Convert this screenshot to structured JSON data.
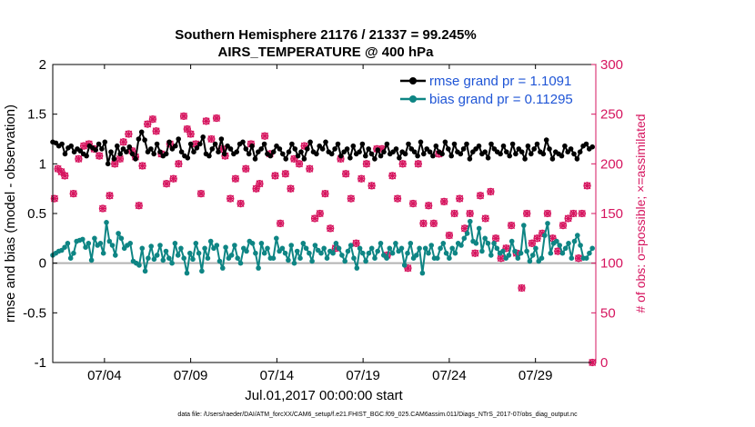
{
  "chart_data": {
    "type": "line",
    "title": "Southern Hemisphere 21176 / 21337 = 99.245%",
    "subtitle": "AIRS_TEMPERATURE @ 400 hPa",
    "xlabel": "Jul.01,2017 00:00:00 start",
    "ylabel": "rmse and bias (model - observation)",
    "ylabel_right": "# of obs: o=possible; ×=assimilated",
    "xlim": [
      1,
      32.5
    ],
    "ylim": [
      -1,
      2
    ],
    "ylim_right": [
      0,
      300
    ],
    "x_ticks": [
      4,
      9,
      14,
      19,
      24,
      29
    ],
    "x_tick_labels": [
      "07/04",
      "07/09",
      "07/14",
      "07/19",
      "07/24",
      "07/29"
    ],
    "y_ticks": [
      -1,
      -0.5,
      0,
      0.5,
      1,
      1.5,
      2
    ],
    "y_tick_labels": [
      "-1",
      "-0.5",
      "0",
      "0.5",
      "1",
      "1.5",
      "2"
    ],
    "y_right_ticks": [
      0,
      50,
      100,
      150,
      200,
      250,
      300
    ],
    "y_right_tick_labels": [
      "0",
      "50",
      "100",
      "150",
      "200",
      "250",
      "300"
    ],
    "legend_position": "top-right",
    "reference_line_y": 0,
    "series": [
      {
        "name": "rmse grand pr = 1.1091",
        "axis": "left",
        "color": "#000000",
        "values": [
          1.22,
          1.21,
          1.18,
          1.2,
          1.1,
          1.16,
          1.18,
          1.12,
          1.15,
          1.13,
          1.1,
          1.08,
          1.18,
          1.16,
          1.14,
          1.2,
          1.15,
          1.22,
          1.0,
          1.12,
          1.05,
          1.18,
          1.1,
          1.15,
          1.12,
          1.17,
          1.1,
          1.05,
          1.25,
          1.32,
          1.24,
          1.12,
          1.15,
          1.1,
          1.2,
          1.12,
          1.08,
          1.1,
          1.22,
          1.15,
          1.18,
          1.25,
          1.12,
          1.08,
          1.06,
          1.2,
          1.12,
          1.16,
          1.2,
          1.27,
          1.1,
          1.08,
          1.15,
          1.2,
          1.12,
          1.25,
          1.1,
          1.18,
          1.15,
          1.1,
          1.12,
          1.2,
          1.22,
          1.15,
          1.1,
          1.18,
          1.05,
          1.12,
          1.15,
          1.2,
          1.1,
          1.08,
          1.12,
          1.18,
          1.15,
          1.1,
          1.05,
          1.12,
          1.2,
          1.15,
          1.08,
          1.12,
          1.05,
          1.15,
          1.22,
          1.12,
          1.1,
          1.18,
          1.15,
          1.22,
          1.12,
          1.1,
          1.15,
          1.2,
          1.08,
          1.12,
          1.15,
          1.06,
          1.18,
          1.1,
          1.12,
          1.2,
          1.08,
          1.15,
          1.1,
          1.05,
          1.14,
          1.08,
          1.12,
          1.2,
          1.1,
          1.12,
          1.15,
          1.06,
          1.12,
          1.1,
          1.2,
          1.15,
          1.12,
          1.08,
          1.22,
          1.1,
          1.15,
          1.12,
          1.08,
          1.18,
          1.12,
          1.1,
          1.22,
          1.15,
          1.08,
          1.2,
          1.12,
          1.1,
          1.15,
          1.2,
          1.05,
          1.12,
          1.15,
          1.18,
          1.1,
          1.12,
          1.06,
          1.2,
          1.15,
          1.12,
          1.1,
          1.18,
          1.12,
          1.08,
          1.2,
          1.1,
          1.15,
          1.12,
          1.05,
          1.18,
          1.1,
          1.15,
          1.2,
          1.12,
          1.1,
          1.24,
          1.15,
          1.05,
          1.12,
          1.1,
          1.08,
          1.18,
          1.12,
          1.15,
          1.1,
          1.05,
          1.12,
          1.18,
          1.2,
          1.15,
          1.17
        ]
      },
      {
        "name": "bias grand pr = 0.11295",
        "axis": "left",
        "color": "#0e8584",
        "values": [
          0.08,
          0.1,
          0.12,
          0.13,
          0.16,
          0.2,
          0.05,
          0.1,
          0.22,
          0.23,
          0.24,
          0.16,
          0.2,
          0.03,
          0.25,
          0.18,
          0.2,
          0.1,
          0.41,
          0.22,
          0.18,
          0.08,
          0.3,
          0.25,
          0.15,
          0.18,
          0.2,
          0.02,
          0.0,
          -0.02,
          0.15,
          -0.08,
          0.05,
          0.17,
          0.04,
          0.08,
          0.18,
          0.03,
          0.12,
          0.05,
          0.0,
          0.2,
          0.08,
          0.15,
          0.05,
          -0.1,
          0.1,
          0.04,
          0.2,
          0.1,
          -0.08,
          0.15,
          0.05,
          0.22,
          0.15,
          0.18,
          0.02,
          -0.05,
          0.16,
          0.05,
          0.08,
          0.18,
          0.05,
          0.0,
          0.15,
          0.12,
          0.22,
          0.2,
          0.1,
          -0.05,
          0.2,
          0.1,
          0.15,
          0.05,
          0.05,
          0.25,
          0.12,
          0.15,
          0.1,
          0.03,
          0.18,
          0.0,
          0.12,
          0.05,
          0.2,
          0.15,
          0.1,
          0.02,
          0.18,
          0.13,
          0.1,
          0.15,
          0.05,
          0.12,
          0.1,
          0.2,
          0.15,
          0.08,
          0.02,
          0.12,
          0.18,
          0.05,
          -0.05,
          0.15,
          0.1,
          0.02,
          0.1,
          0.15,
          0.05,
          0.12,
          0.2,
          0.08,
          0.05,
          0.15,
          0.1,
          0.2,
          0.12,
          0.15,
          -0.02,
          0.1,
          0.2,
          0.05,
          0.08,
          0.15,
          -0.1,
          0.15,
          0.1,
          0.18,
          0.05,
          0.05,
          0.15,
          0.2,
          0.1,
          0.05,
          0.15,
          0.1,
          0.2,
          0.18,
          0.25,
          0.3,
          0.42,
          0.22,
          0.2,
          0.35,
          0.12,
          0.25,
          0.2,
          0.08,
          0.2,
          0.15,
          0.1,
          0.12,
          0.05,
          0.08,
          0.22,
          0.12,
          0.05,
          0.1,
          0.38,
          0.12,
          0.02,
          0.08,
          0.15,
          0.02,
          0.05,
          0.28,
          0.4,
          0.1,
          0.2,
          0.22,
          0.18,
          0.1,
          0.15,
          0.2,
          0.05,
          0.22,
          0.28,
          0.18,
          0.05,
          0.05,
          0.1,
          0.15
        ]
      },
      {
        "name": "",
        "axis": "right",
        "color": "#d6155f",
        "x": [
          1.1,
          1.3,
          1.5,
          1.7,
          2.2,
          2.5,
          2.8,
          3.1,
          3.4,
          3.7,
          3.9,
          4.3,
          4.6,
          4.9,
          5.1,
          5.4,
          5.6,
          5.8,
          6.0,
          6.2,
          6.5,
          6.8,
          7.0,
          7.3,
          7.6,
          7.8,
          8.0,
          8.3,
          8.6,
          8.8,
          9.0,
          9.3,
          9.6,
          9.9,
          10.2,
          10.5,
          10.8,
          11.0,
          11.3,
          11.6,
          11.9,
          12.2,
          12.5,
          12.8,
          13.0,
          13.3,
          13.6,
          13.9,
          14.2,
          14.5,
          14.8,
          15.0,
          15.3,
          15.6,
          15.9,
          16.2,
          16.5,
          16.8,
          17.1,
          17.4,
          17.7,
          18.0,
          18.3,
          18.6,
          18.9,
          19.2,
          19.5,
          19.8,
          20.1,
          20.4,
          20.7,
          21.0,
          21.3,
          21.6,
          21.9,
          22.2,
          22.5,
          22.8,
          23.1,
          23.4,
          23.7,
          24.0,
          24.3,
          24.6,
          24.9,
          25.2,
          25.5,
          25.8,
          26.1,
          26.4,
          26.7,
          27.0,
          27.3,
          27.6,
          27.9,
          28.2,
          28.5,
          28.8,
          29.1,
          29.4,
          29.7,
          30.0,
          30.3,
          30.6,
          30.9,
          31.2,
          31.5,
          31.7,
          32.0,
          32.3
        ],
        "values": [
          165,
          195,
          192,
          188,
          170,
          205,
          218,
          220,
          215,
          208,
          155,
          168,
          200,
          205,
          222,
          230,
          213,
          207,
          158,
          198,
          240,
          245,
          233,
          210,
          180,
          220,
          185,
          200,
          248,
          235,
          230,
          220,
          170,
          243,
          225,
          246,
          215,
          208,
          165,
          185,
          160,
          195,
          220,
          175,
          180,
          228,
          210,
          188,
          140,
          190,
          175,
          205,
          200,
          218,
          195,
          145,
          150,
          170,
          135,
          115,
          205,
          190,
          165,
          120,
          185,
          200,
          178,
          215,
          215,
          108,
          188,
          165,
          200,
          95,
          160,
          200,
          140,
          158,
          140,
          210,
          162,
          128,
          150,
          165,
          135,
          150,
          110,
          168,
          145,
          172,
          125,
          105,
          115,
          138,
          110,
          75,
          150,
          120,
          125,
          130,
          150,
          125,
          112,
          138,
          145,
          150,
          105,
          150,
          178,
          0
        ]
      }
    ],
    "footnote": "data file: /Users/raeder/DAI/ATM_forcXX/CAM6_setup/f.e21.FHIST_BGC.f09_025.CAM6assim.011/Diags_NTrS_2017-07/obs_diag_output.nc"
  }
}
